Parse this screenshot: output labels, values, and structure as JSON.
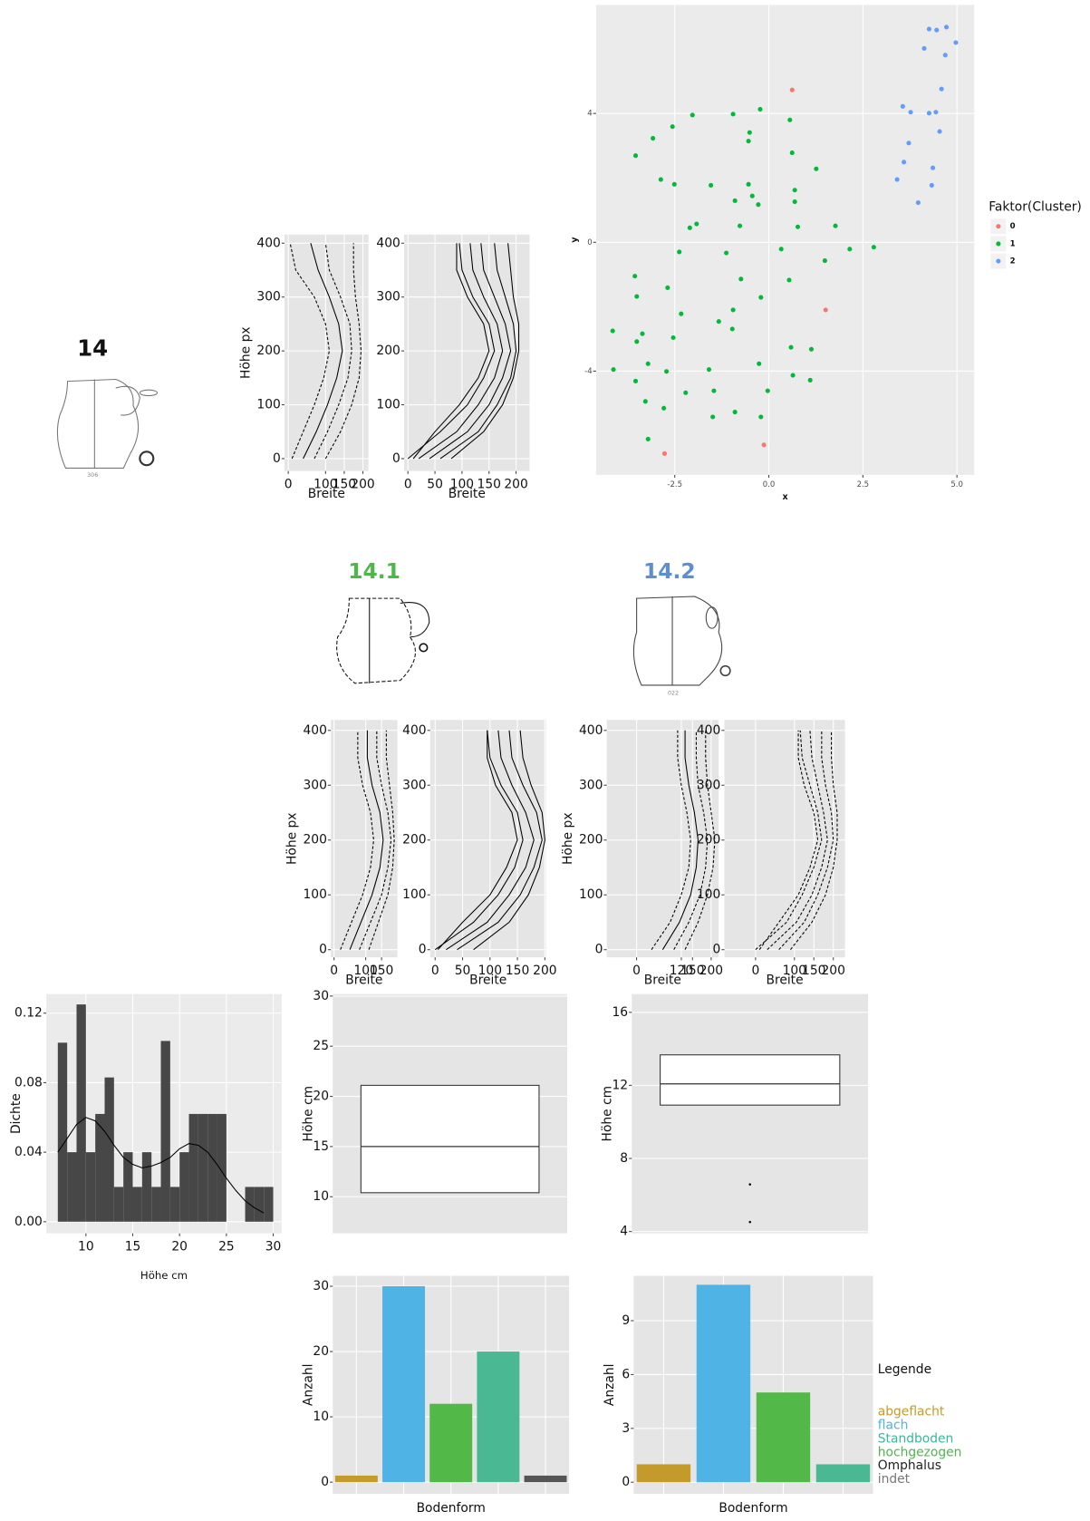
{
  "vessels": [
    {
      "label": "14",
      "number": "306"
    },
    {
      "label": "14.1"
    },
    {
      "label": "14.2",
      "number": "022"
    }
  ],
  "legend": {
    "title": "Legende",
    "entries": [
      {
        "name": "abgeflacht",
        "color": "#c49a2c"
      },
      {
        "name": "flach",
        "color": "#4fb3e5"
      },
      {
        "name": "Standboden",
        "color": "#3bb79a"
      },
      {
        "name": "hochgezogen",
        "color": "#4cb848"
      },
      {
        "name": "Omphalus",
        "color": "#222222"
      },
      {
        "name": "indet",
        "color": "#777777"
      }
    ]
  },
  "chart_data": [
    {
      "type": "profile",
      "ylabel": "Höhe px",
      "xlabel": "Breite",
      "xlim": [
        -10,
        215
      ],
      "xticks": [
        0,
        100,
        150,
        200
      ],
      "ylim": [
        -23,
        416
      ],
      "yticks": [
        0,
        100,
        200,
        300,
        400
      ],
      "y": [
        0,
        50,
        100,
        150,
        200,
        250,
        300,
        350,
        400
      ],
      "color": "#000000",
      "series": [
        {
          "dashed": true,
          "values": [
            10,
            40,
            70,
            95,
            110,
            100,
            70,
            20,
            5
          ]
        },
        {
          "dashed": false,
          "values": [
            40,
            75,
            105,
            130,
            145,
            135,
            110,
            80,
            60
          ]
        },
        {
          "dashed": true,
          "values": [
            70,
            105,
            135,
            160,
            170,
            165,
            140,
            110,
            100
          ]
        },
        {
          "dashed": true,
          "values": [
            100,
            140,
            170,
            190,
            195,
            190,
            180,
            175,
            175
          ]
        }
      ]
    },
    {
      "type": "profile",
      "xlabel": "Breite",
      "xlim": [
        -7,
        225
      ],
      "xticks": [
        0,
        50,
        100,
        150,
        200
      ],
      "ylim": [
        -23,
        416
      ],
      "yticks": [
        0,
        100,
        200,
        300,
        400
      ],
      "y": [
        0,
        50,
        100,
        150,
        200,
        250,
        300,
        350,
        400
      ],
      "color": "#000000",
      "series": [
        {
          "dashed": false,
          "values": [
            0,
            60,
            110,
            140,
            160,
            150,
            120,
            100,
            95
          ]
        },
        {
          "dashed": false,
          "values": [
            20,
            90,
            130,
            160,
            175,
            165,
            140,
            120,
            115
          ]
        },
        {
          "dashed": false,
          "values": [
            40,
            110,
            150,
            175,
            190,
            180,
            160,
            140,
            135
          ]
        },
        {
          "dashed": false,
          "values": [
            60,
            130,
            165,
            190,
            200,
            195,
            180,
            165,
            160
          ]
        },
        {
          "dashed": false,
          "values": [
            80,
            140,
            175,
            195,
            205,
            205,
            195,
            190,
            185
          ]
        },
        {
          "dashed": false,
          "values": [
            10,
            50,
            95,
            130,
            150,
            140,
            110,
            90,
            90
          ]
        }
      ]
    },
    {
      "type": "scatter",
      "xlabel": "x",
      "ylabel": "y",
      "xlim": [
        -4.59,
        5.46
      ],
      "ylim": [
        -7.22,
        7.37
      ],
      "xticks": [
        -2.5,
        {
          "value": 0,
          "label": "0.0"
        },
        2.5,
        {
          "value": 5,
          "label": "5.0"
        }
      ],
      "yticks": [
        -4,
        0,
        4
      ],
      "grid": true,
      "legend_title": "Faktor(Cluster)",
      "legend": "right",
      "series": [
        {
          "name": "0",
          "color": "#f8766d",
          "x": [
            0.62,
            1.51,
            -0.13,
            -2.77
          ],
          "y": [
            4.73,
            -2.1,
            -6.29,
            -6.56
          ]
        },
        {
          "name": "1",
          "color": "#00ba38",
          "x": [
            -2.03,
            -0.95,
            -0.23,
            0.56,
            -2.56,
            -0.51,
            -3.08,
            -0.54,
            -3.54,
            0.62,
            -2.87,
            -1.54,
            -2.51,
            -0.54,
            1.26,
            -0.9,
            -0.44,
            -0.28,
            0.69,
            0.69,
            -2.1,
            -1.92,
            -0.77,
            0.77,
            1.77,
            -2.38,
            -1.13,
            0.33,
            2.15,
            2.79,
            1.49,
            -3.56,
            -0.74,
            0.54,
            -3.51,
            -2.69,
            -0.21,
            -2.33,
            -0.95,
            -1.33,
            -0.97,
            -4.15,
            -3.36,
            -3.51,
            -2.54,
            0.59,
            1.13,
            -3.21,
            -2.72,
            -4.13,
            -1.59,
            -0.26,
            -3.54,
            0.64,
            1.1,
            -2.21,
            -1.46,
            -0.03,
            -3.28,
            -2.79,
            -0.9,
            -1.49,
            -0.21,
            -3.21
          ],
          "y": [
            3.95,
            3.98,
            4.13,
            3.8,
            3.59,
            3.41,
            3.23,
            3.14,
            2.69,
            2.78,
            1.95,
            1.77,
            1.8,
            1.8,
            2.28,
            1.29,
            1.44,
            1.17,
            1.62,
            1.26,
            0.45,
            0.57,
            0.51,
            0.48,
            0.51,
            -0.3,
            -0.33,
            -0.21,
            -0.21,
            -0.15,
            -0.57,
            -1.05,
            -1.14,
            -1.17,
            -1.68,
            -1.41,
            -1.71,
            -2.22,
            -2.1,
            -2.46,
            -2.69,
            -2.75,
            -2.84,
            -3.08,
            -2.96,
            -3.26,
            -3.32,
            -3.77,
            -4.01,
            -3.95,
            -3.95,
            -3.77,
            -4.31,
            -4.13,
            -4.28,
            -4.67,
            -4.61,
            -4.61,
            -4.94,
            -5.15,
            -5.27,
            -5.42,
            -5.42,
            -6.11
          ]
        },
        {
          "name": "2",
          "color": "#619cff",
          "x": [
            4.26,
            4.46,
            4.72,
            4.97,
            4.13,
            4.69,
            4.59,
            3.56,
            3.77,
            4.26,
            4.44,
            4.54,
            3.72,
            3.59,
            4.36,
            3.41,
            4.33,
            3.97
          ],
          "y": [
            6.62,
            6.59,
            6.68,
            6.2,
            6.02,
            5.81,
            4.76,
            4.22,
            4.04,
            4.01,
            4.04,
            3.44,
            3.08,
            2.49,
            2.31,
            1.95,
            1.77,
            1.23
          ]
        }
      ]
    },
    {
      "type": "profile",
      "ylabel": "Höhe px",
      "xlabel": "Breite",
      "xlim": [
        -10,
        200
      ],
      "xticks": [
        0,
        100,
        150
      ],
      "ylim": [
        -14,
        419
      ],
      "yticks": [
        0,
        100,
        200,
        300,
        400
      ],
      "y": [
        0,
        50,
        100,
        150,
        200,
        250,
        300,
        350,
        400
      ],
      "color": "#000000",
      "series": [
        {
          "dashed": true,
          "values": [
            20,
            55,
            90,
            115,
            125,
            115,
            90,
            75,
            75
          ]
        },
        {
          "dashed": false,
          "values": [
            50,
            85,
            120,
            145,
            155,
            145,
            120,
            105,
            105
          ]
        },
        {
          "dashed": true,
          "values": [
            80,
            115,
            150,
            170,
            180,
            170,
            150,
            135,
            135
          ]
        },
        {
          "dashed": true,
          "values": [
            110,
            140,
            170,
            185,
            190,
            185,
            175,
            165,
            165
          ]
        }
      ]
    },
    {
      "type": "profile",
      "xlabel": "Breite",
      "xlim": [
        -9,
        202
      ],
      "xticks": [
        0,
        50,
        100,
        150,
        200
      ],
      "ylim": [
        -14,
        419
      ],
      "yticks": [
        0,
        100,
        200,
        300,
        400
      ],
      "y": [
        0,
        50,
        100,
        150,
        200,
        250,
        300,
        350,
        400
      ],
      "color": "#000000",
      "series": [
        {
          "dashed": false,
          "values": [
            0,
            70,
            115,
            145,
            160,
            150,
            120,
            100,
            95
          ]
        },
        {
          "dashed": false,
          "values": [
            20,
            95,
            135,
            165,
            180,
            165,
            140,
            120,
            115
          ]
        },
        {
          "dashed": false,
          "values": [
            40,
            115,
            155,
            180,
            195,
            185,
            160,
            140,
            135
          ]
        },
        {
          "dashed": false,
          "values": [
            70,
            135,
            170,
            190,
            200,
            195,
            175,
            160,
            155
          ]
        },
        {
          "dashed": false,
          "values": [
            5,
            50,
            100,
            130,
            150,
            140,
            110,
            95,
            95
          ]
        }
      ]
    },
    {
      "type": "profile",
      "ylabel": "Höhe px",
      "xlabel": "Breite",
      "xlim": [
        -80,
        220
      ],
      "xticks": [
        0,
        120,
        150,
        200
      ],
      "ylim": [
        -14,
        419
      ],
      "yticks": [
        0,
        100,
        200,
        300,
        400
      ],
      "y": [
        0,
        50,
        100,
        150,
        200,
        250,
        300,
        350,
        400
      ],
      "color": "#000000",
      "series": [
        {
          "dashed": true,
          "values": [
            40,
            90,
            120,
            140,
            145,
            135,
            120,
            110,
            110
          ]
        },
        {
          "dashed": false,
          "values": [
            70,
            115,
            145,
            160,
            165,
            155,
            140,
            130,
            130
          ]
        },
        {
          "dashed": true,
          "values": [
            100,
            140,
            170,
            185,
            190,
            180,
            165,
            160,
            160
          ]
        },
        {
          "dashed": true,
          "values": [
            130,
            165,
            190,
            205,
            210,
            200,
            190,
            185,
            185
          ]
        }
      ]
    },
    {
      "type": "profile",
      "xlabel": "Breite",
      "xlim": [
        -80,
        230
      ],
      "xticks": [
        0,
        100,
        150,
        200
      ],
      "ylim": [
        -14,
        419
      ],
      "yticks": [
        0,
        100,
        200,
        300,
        400
      ],
      "y": [
        0,
        50,
        100,
        150,
        200,
        250,
        300,
        350,
        400
      ],
      "color": "#000000",
      "series": [
        {
          "dashed": true,
          "values": [
            0,
            80,
            120,
            150,
            170,
            160,
            140,
            120,
            115
          ]
        },
        {
          "dashed": true,
          "values": [
            30,
            105,
            145,
            170,
            185,
            175,
            160,
            145,
            140
          ]
        },
        {
          "dashed": true,
          "values": [
            60,
            125,
            160,
            185,
            200,
            195,
            180,
            170,
            170
          ]
        },
        {
          "dashed": true,
          "values": [
            90,
            145,
            180,
            200,
            210,
            210,
            200,
            195,
            195
          ]
        },
        {
          "dashed": true,
          "values": [
            10,
            60,
            110,
            140,
            160,
            150,
            125,
            110,
            110
          ]
        }
      ]
    },
    {
      "type": "histogram",
      "xlabel": "Höhe cm",
      "ylabel": "Dichte",
      "color": "#474747",
      "bins": [
        7,
        8,
        9,
        10,
        11,
        12,
        13,
        14,
        15,
        16,
        17,
        18,
        19,
        20,
        21,
        22,
        23,
        24,
        25,
        26,
        27,
        28,
        29,
        30
      ],
      "values": [
        0.103,
        0.04,
        0.125,
        0.04,
        0.062,
        0.083,
        0.02,
        0.04,
        0.02,
        0.04,
        0.02,
        0.104,
        0.02,
        0.04,
        0.062,
        0.062,
        0.062,
        0.062,
        0,
        0,
        0.02,
        0.02,
        0.02
      ],
      "xlim": [
        5.77,
        30.9
      ],
      "ylim": [
        -0.0067,
        0.131
      ],
      "xticks": [
        10,
        15,
        20,
        25,
        30
      ],
      "yticks": [
        {
          "value": 0,
          "label": "0.00"
        },
        0.04,
        0.08,
        0.12
      ],
      "grid": true,
      "density": {
        "x": [
          7,
          8,
          9,
          10,
          11,
          12,
          13,
          14,
          15,
          16,
          17,
          18,
          19,
          20,
          21,
          22,
          23,
          24,
          25,
          26,
          27,
          28,
          29
        ],
        "y": [
          0.04,
          0.048,
          0.056,
          0.06,
          0.058,
          0.052,
          0.044,
          0.037,
          0.033,
          0.031,
          0.032,
          0.034,
          0.037,
          0.042,
          0.045,
          0.044,
          0.04,
          0.033,
          0.025,
          0.018,
          0.012,
          0.008,
          0.005
        ]
      }
    },
    {
      "type": "box",
      "ylabel": "Höhe cm",
      "ylim": [
        6.35,
        30.2
      ],
      "yticks": [
        10,
        15,
        20,
        25,
        30
      ],
      "grid": true,
      "q1": 10.4,
      "median": 15,
      "q3": 21.1
    },
    {
      "type": "box",
      "ylabel": "Höhe cm",
      "ylim": [
        3.9,
        17
      ],
      "yticks": [
        4,
        8,
        12,
        16
      ],
      "grid": true,
      "q1": 10.92,
      "median": 12.08,
      "q3": 13.67,
      "outliers": [
        6.58,
        4.52
      ]
    },
    {
      "type": "bar",
      "xlabel": "Bodenform",
      "ylabel": "Anzahl",
      "categories": [
        null,
        null,
        null,
        null,
        null
      ],
      "values": [
        1,
        30,
        12,
        20,
        1
      ],
      "colors": [
        "#c49a2c",
        "#4fb3e5",
        "#52b848",
        "#4bb894",
        "#555555"
      ],
      "ylim": [
        -1.8,
        31.6
      ],
      "yticks": [
        0,
        10,
        20,
        30
      ],
      "grid": true
    },
    {
      "type": "bar",
      "xlabel": "Bodenform",
      "ylabel": "Anzahl",
      "categories": [
        null,
        null,
        null,
        null
      ],
      "values": [
        1,
        11,
        5,
        1
      ],
      "colors": [
        "#c49a2c",
        "#4fb3e5",
        "#52b848",
        "#4bb894"
      ],
      "ylim": [
        -0.65,
        11.5
      ],
      "yticks": [
        0,
        3,
        6,
        9
      ],
      "grid": true
    }
  ]
}
